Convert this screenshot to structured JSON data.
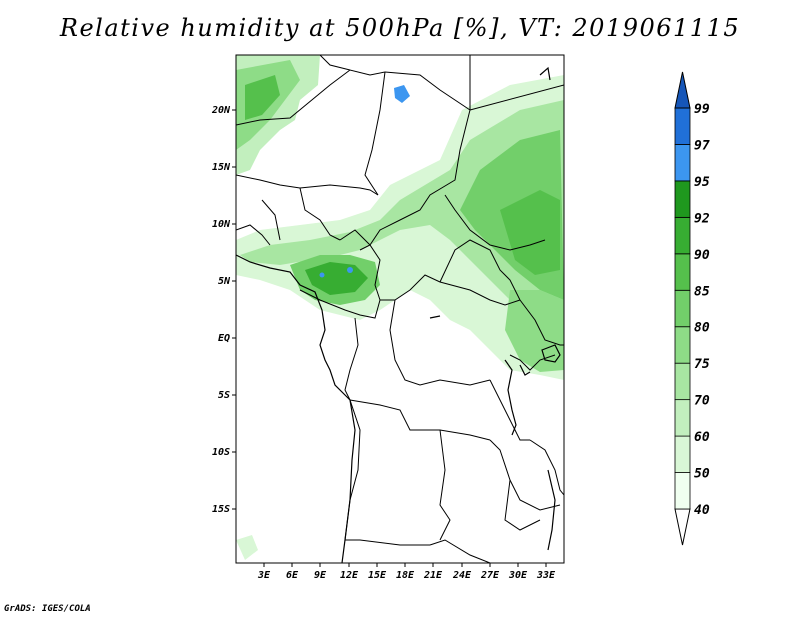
{
  "title": "Relative humidity at 500hPa [%], VT: 2019061115",
  "credit": "GrADS: IGES/COLA",
  "map": {
    "lat_labels": [
      "20N",
      "15N",
      "10N",
      "5N",
      "EQ",
      "5S",
      "10S",
      "15S"
    ],
    "lon_labels": [
      "3E",
      "6E",
      "9E",
      "12E",
      "15E",
      "18E",
      "21E",
      "24E",
      "27E",
      "30E",
      "33E"
    ],
    "field": "relative humidity",
    "level": "500hPa",
    "units": "%"
  },
  "colorbar": {
    "levels": [
      "40",
      "50",
      "60",
      "70",
      "75",
      "80",
      "85",
      "90",
      "92",
      "95",
      "97",
      "99"
    ],
    "colors": [
      "#f0fff0",
      "#d9f7d6",
      "#c2efbe",
      "#a8e6a2",
      "#8edc87",
      "#72cf6a",
      "#55c04c",
      "#37ad32",
      "#1f981e",
      "#3c96f0",
      "#2070d8",
      "#1656b8"
    ]
  }
}
